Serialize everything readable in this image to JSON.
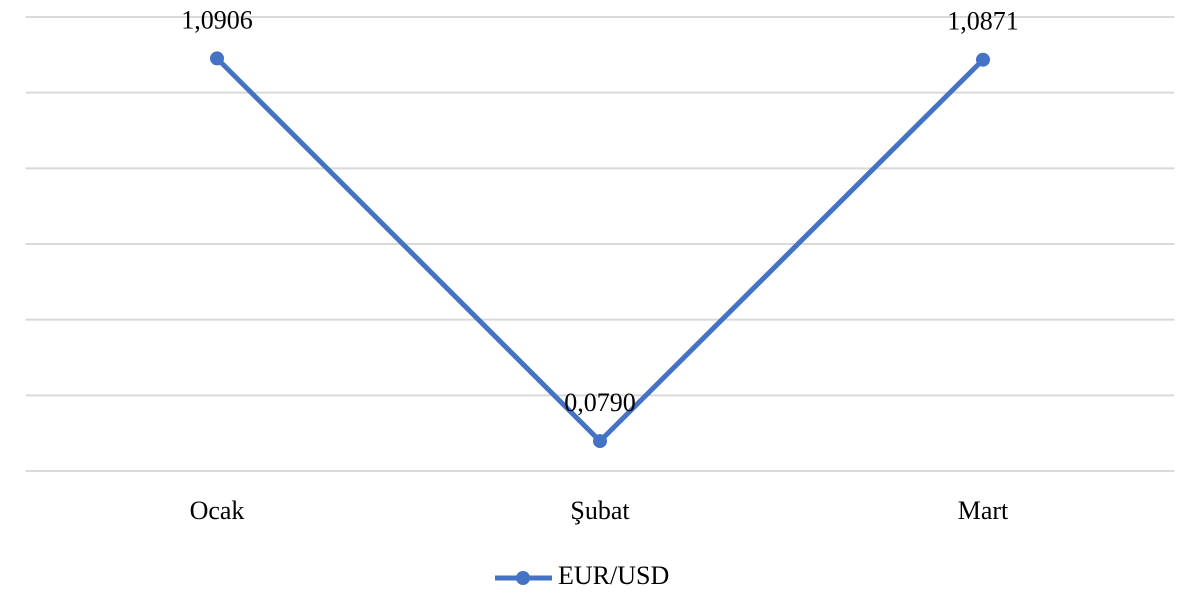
{
  "chart_data": {
    "type": "line",
    "categories": [
      "Ocak",
      "Şubat",
      "Mart"
    ],
    "series": [
      {
        "name": "EUR/USD",
        "color": "#4472c4",
        "values": [
          1.0906,
          0.079,
          1.0871
        ],
        "value_labels": [
          "1,0906",
          "0,0790",
          "1,0871"
        ]
      }
    ],
    "ylim": [
      0,
      1.2
    ],
    "yticks": [
      0,
      0.2,
      0.4,
      0.6,
      0.8,
      1,
      1.2
    ],
    "grid": true,
    "legend": "bottom"
  }
}
